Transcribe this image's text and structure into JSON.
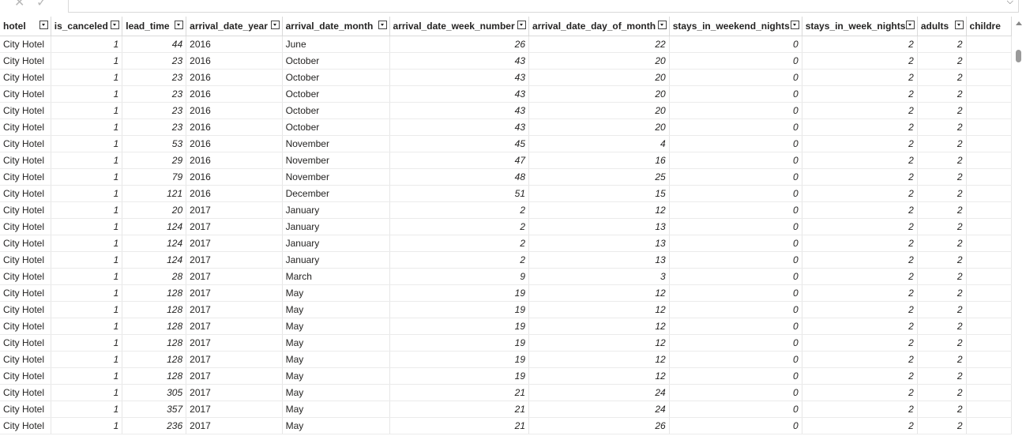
{
  "toolbar": {
    "cancel_icon": "close-icon",
    "commit_icon": "check-icon",
    "expand_icon": "chevron-down-icon"
  },
  "table": {
    "columns": [
      {
        "key": "hotel",
        "label": "hotel",
        "align": "left"
      },
      {
        "key": "is_canceled",
        "label": "is_canceled",
        "align": "right"
      },
      {
        "key": "lead_time",
        "label": "lead_time",
        "align": "right"
      },
      {
        "key": "arrival_date_year",
        "label": "arrival_date_year",
        "align": "left"
      },
      {
        "key": "arrival_date_month",
        "label": "arrival_date_month",
        "align": "left"
      },
      {
        "key": "arrival_date_week_number",
        "label": "arrival_date_week_number",
        "align": "right"
      },
      {
        "key": "arrival_date_day_of_month",
        "label": "arrival_date_day_of_month",
        "align": "right"
      },
      {
        "key": "stays_in_weekend_nights",
        "label": "stays_in_weekend_nights",
        "align": "right"
      },
      {
        "key": "stays_in_week_nights",
        "label": "stays_in_week_nights",
        "align": "right"
      },
      {
        "key": "adults",
        "label": "adults",
        "align": "right"
      },
      {
        "key": "children",
        "label": "childre",
        "align": "right"
      }
    ],
    "rows": [
      [
        "City Hotel",
        "1",
        "44",
        "2016",
        "June",
        "26",
        "22",
        "0",
        "2",
        "2",
        ""
      ],
      [
        "City Hotel",
        "1",
        "23",
        "2016",
        "October",
        "43",
        "20",
        "0",
        "2",
        "2",
        ""
      ],
      [
        "City Hotel",
        "1",
        "23",
        "2016",
        "October",
        "43",
        "20",
        "0",
        "2",
        "2",
        ""
      ],
      [
        "City Hotel",
        "1",
        "23",
        "2016",
        "October",
        "43",
        "20",
        "0",
        "2",
        "2",
        ""
      ],
      [
        "City Hotel",
        "1",
        "23",
        "2016",
        "October",
        "43",
        "20",
        "0",
        "2",
        "2",
        ""
      ],
      [
        "City Hotel",
        "1",
        "23",
        "2016",
        "October",
        "43",
        "20",
        "0",
        "2",
        "2",
        ""
      ],
      [
        "City Hotel",
        "1",
        "53",
        "2016",
        "November",
        "45",
        "4",
        "0",
        "2",
        "2",
        ""
      ],
      [
        "City Hotel",
        "1",
        "29",
        "2016",
        "November",
        "47",
        "16",
        "0",
        "2",
        "2",
        ""
      ],
      [
        "City Hotel",
        "1",
        "79",
        "2016",
        "November",
        "48",
        "25",
        "0",
        "2",
        "2",
        ""
      ],
      [
        "City Hotel",
        "1",
        "121",
        "2016",
        "December",
        "51",
        "15",
        "0",
        "2",
        "2",
        ""
      ],
      [
        "City Hotel",
        "1",
        "20",
        "2017",
        "January",
        "2",
        "12",
        "0",
        "2",
        "2",
        ""
      ],
      [
        "City Hotel",
        "1",
        "124",
        "2017",
        "January",
        "2",
        "13",
        "0",
        "2",
        "2",
        ""
      ],
      [
        "City Hotel",
        "1",
        "124",
        "2017",
        "January",
        "2",
        "13",
        "0",
        "2",
        "2",
        ""
      ],
      [
        "City Hotel",
        "1",
        "124",
        "2017",
        "January",
        "2",
        "13",
        "0",
        "2",
        "2",
        ""
      ],
      [
        "City Hotel",
        "1",
        "28",
        "2017",
        "March",
        "9",
        "3",
        "0",
        "2",
        "2",
        ""
      ],
      [
        "City Hotel",
        "1",
        "128",
        "2017",
        "May",
        "19",
        "12",
        "0",
        "2",
        "2",
        ""
      ],
      [
        "City Hotel",
        "1",
        "128",
        "2017",
        "May",
        "19",
        "12",
        "0",
        "2",
        "2",
        ""
      ],
      [
        "City Hotel",
        "1",
        "128",
        "2017",
        "May",
        "19",
        "12",
        "0",
        "2",
        "2",
        ""
      ],
      [
        "City Hotel",
        "1",
        "128",
        "2017",
        "May",
        "19",
        "12",
        "0",
        "2",
        "2",
        ""
      ],
      [
        "City Hotel",
        "1",
        "128",
        "2017",
        "May",
        "19",
        "12",
        "0",
        "2",
        "2",
        ""
      ],
      [
        "City Hotel",
        "1",
        "128",
        "2017",
        "May",
        "19",
        "12",
        "0",
        "2",
        "2",
        ""
      ],
      [
        "City Hotel",
        "1",
        "305",
        "2017",
        "May",
        "21",
        "24",
        "0",
        "2",
        "2",
        ""
      ],
      [
        "City Hotel",
        "1",
        "357",
        "2017",
        "May",
        "21",
        "24",
        "0",
        "2",
        "2",
        ""
      ],
      [
        "City Hotel",
        "1",
        "236",
        "2017",
        "May",
        "21",
        "26",
        "0",
        "2",
        "2",
        ""
      ]
    ]
  }
}
